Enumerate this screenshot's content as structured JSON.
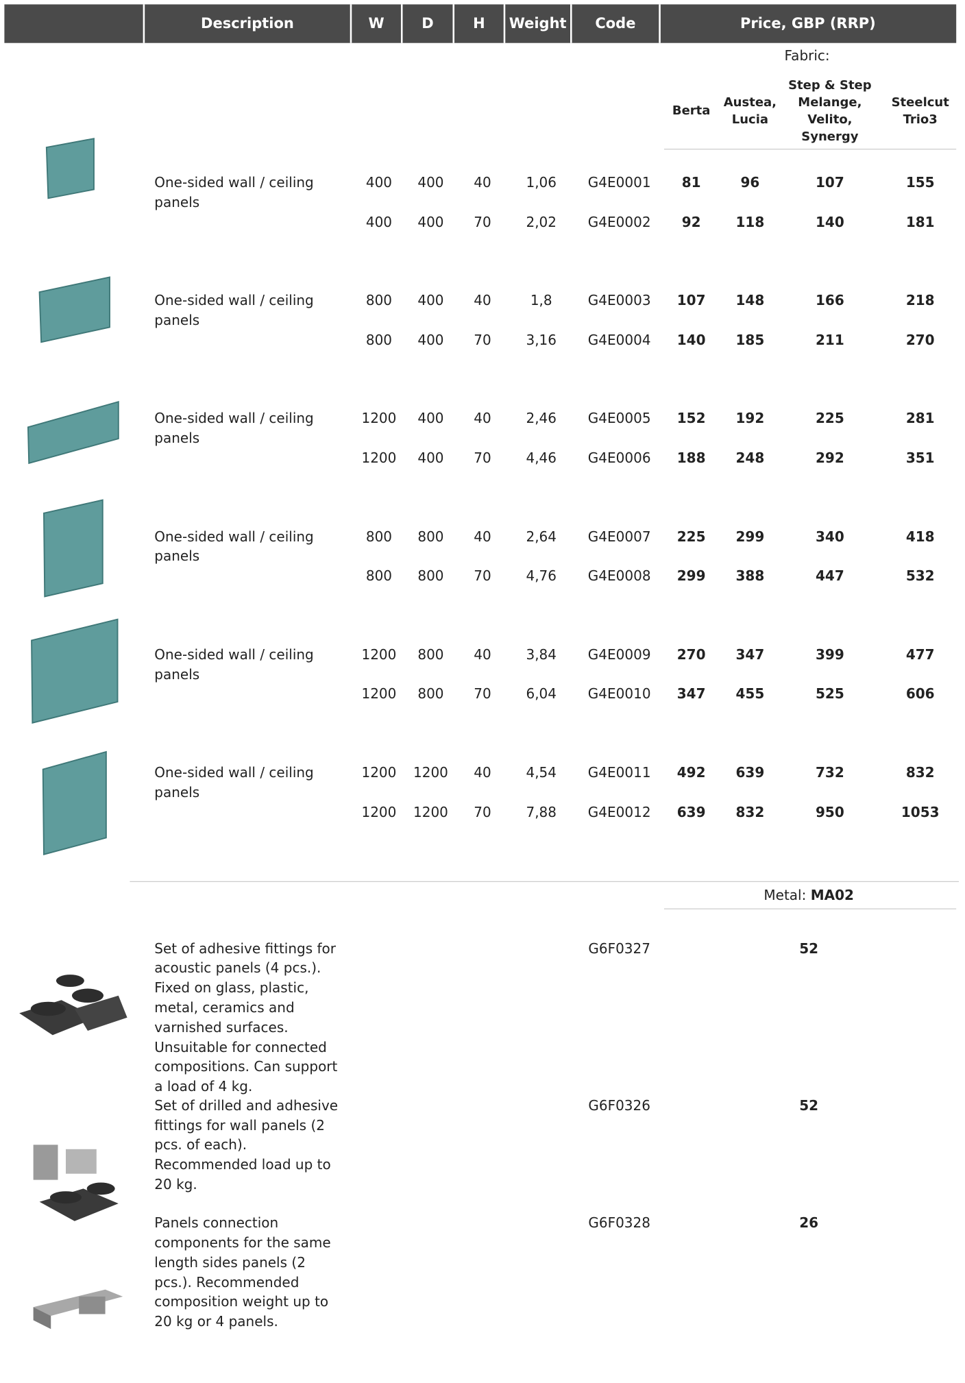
{
  "header": {
    "columns": [
      "Description",
      "W",
      "D",
      "H",
      "Weight",
      "Code",
      "Price, GBP (RRP)"
    ]
  },
  "fabric": {
    "label": "Fabric:",
    "columns": [
      "Berta",
      "Austea, Lucia",
      "Step & Step Melange, Velito, Synergy",
      "Steelcut Trio3"
    ]
  },
  "panels": [
    {
      "description": "One-sided wall / ceiling panels",
      "rows": [
        {
          "w": 400,
          "d": 400,
          "h": 40,
          "weight": "1,06",
          "code": "G4E0001",
          "prices": [
            81,
            96,
            107,
            155
          ]
        },
        {
          "w": 400,
          "d": 400,
          "h": 70,
          "weight": "2,02",
          "code": "G4E0002",
          "prices": [
            92,
            118,
            140,
            181
          ]
        }
      ]
    },
    {
      "description": "One-sided wall / ceiling panels",
      "rows": [
        {
          "w": 800,
          "d": 400,
          "h": 40,
          "weight": "1,8",
          "code": "G4E0003",
          "prices": [
            107,
            148,
            166,
            218
          ]
        },
        {
          "w": 800,
          "d": 400,
          "h": 70,
          "weight": "3,16",
          "code": "G4E0004",
          "prices": [
            140,
            185,
            211,
            270
          ]
        }
      ]
    },
    {
      "description": "One-sided wall / ceiling panels",
      "rows": [
        {
          "w": 1200,
          "d": 400,
          "h": 40,
          "weight": "2,46",
          "code": "G4E0005",
          "prices": [
            152,
            192,
            225,
            281
          ]
        },
        {
          "w": 1200,
          "d": 400,
          "h": 70,
          "weight": "4,46",
          "code": "G4E0006",
          "prices": [
            188,
            248,
            292,
            351
          ]
        }
      ]
    },
    {
      "description": "One-sided wall / ceiling panels",
      "rows": [
        {
          "w": 800,
          "d": 800,
          "h": 40,
          "weight": "2,64",
          "code": "G4E0007",
          "prices": [
            225,
            299,
            340,
            418
          ]
        },
        {
          "w": 800,
          "d": 800,
          "h": 70,
          "weight": "4,76",
          "code": "G4E0008",
          "prices": [
            299,
            388,
            447,
            532
          ]
        }
      ]
    },
    {
      "description": "One-sided wall / ceiling panels",
      "rows": [
        {
          "w": 1200,
          "d": 800,
          "h": 40,
          "weight": "3,84",
          "code": "G4E0009",
          "prices": [
            270,
            347,
            399,
            477
          ]
        },
        {
          "w": 1200,
          "d": 800,
          "h": 70,
          "weight": "6,04",
          "code": "G4E0010",
          "prices": [
            347,
            455,
            525,
            606
          ]
        }
      ]
    },
    {
      "description": "One-sided wall / ceiling panels",
      "rows": [
        {
          "w": 1200,
          "d": 1200,
          "h": 40,
          "weight": "4,54",
          "code": "G4E0011",
          "prices": [
            492,
            639,
            732,
            832
          ]
        },
        {
          "w": 1200,
          "d": 1200,
          "h": 70,
          "weight": "7,88",
          "code": "G4E0012",
          "prices": [
            639,
            832,
            950,
            1053
          ]
        }
      ]
    }
  ],
  "metal": {
    "label": "Metal:",
    "finish": "MA02"
  },
  "accessories": [
    {
      "description": "Set of adhesive fittings for acoustic panels (4 pcs.). Fixed on glass, plastic, metal, ceramics and varnished surfaces. Unsuitable for connected compositions. Can support a load of 4 kg.",
      "code": "G6F0327",
      "price": 52
    },
    {
      "description": "Set of drilled and adhesive fittings for wall panels (2 pcs. of each). Recommended load up to 20 kg.",
      "code": "G6F0326",
      "price": 52
    },
    {
      "description": "Panels connection components for the same length sides panels (2 pcs.). Recommended composition weight up to 20 kg or 4 panels.",
      "code": "G6F0328",
      "price": 26
    }
  ]
}
